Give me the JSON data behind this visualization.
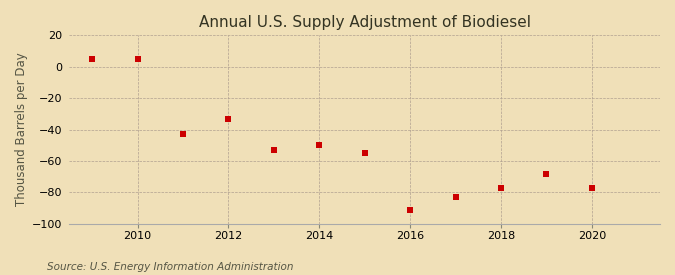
{
  "title": "Annual U.S. Supply Adjustment of Biodiesel",
  "ylabel": "Thousand Barrels per Day",
  "source": "Source: U.S. Energy Information Administration",
  "background_color": "#f0e0b8",
  "plot_background_color": "#f0e0b8",
  "years": [
    2009,
    2010,
    2011,
    2012,
    2013,
    2014,
    2015,
    2016,
    2017,
    2018,
    2019,
    2020
  ],
  "values": [
    5,
    5,
    -43,
    -33,
    -53,
    -50,
    -55,
    -91,
    -83,
    -77,
    -68,
    -77
  ],
  "ylim": [
    -100,
    20
  ],
  "xlim": [
    2008.5,
    2021.5
  ],
  "yticks": [
    -100,
    -80,
    -60,
    -40,
    -20,
    0,
    20
  ],
  "xticks": [
    2010,
    2012,
    2014,
    2016,
    2018,
    2020
  ],
  "marker_color": "#cc0000",
  "marker": "s",
  "marker_size": 4,
  "title_fontsize": 11,
  "label_fontsize": 8.5,
  "tick_fontsize": 8,
  "source_fontsize": 7.5
}
